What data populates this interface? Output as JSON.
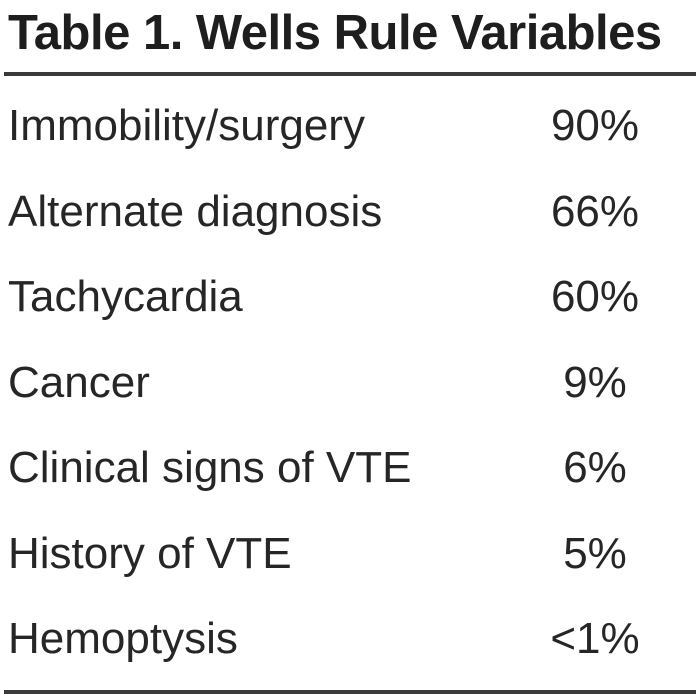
{
  "table": {
    "title": "Table 1. Wells Rule Variables",
    "rows": [
      {
        "variable": "Immobility/surgery",
        "value": "90%"
      },
      {
        "variable": "Alternate diagnosis",
        "value": "66%"
      },
      {
        "variable": "Tachycardia",
        "value": "60%"
      },
      {
        "variable": "Cancer",
        "value": "9%"
      },
      {
        "variable": "Clinical signs of VTE",
        "value": "6%"
      },
      {
        "variable": "History of VTE",
        "value": "5%"
      },
      {
        "variable": "Hemoptysis",
        "value": "<1%"
      }
    ]
  },
  "colors": {
    "text": "#222222",
    "rule": "#3a3a3a",
    "background": "#ffffff"
  }
}
